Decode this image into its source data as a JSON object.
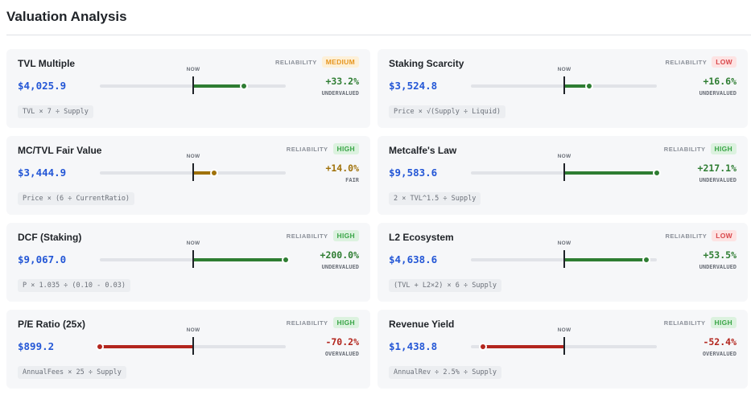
{
  "header": {
    "title": "Valuation Analysis"
  },
  "labels": {
    "reliability": "RELIABILITY",
    "now": "NOW"
  },
  "colors": {
    "value": "#2457d6",
    "undervalued": "#2e7d32",
    "overvalued": "#b3261e",
    "fair": "#a0720a",
    "badge_medium": {
      "bg": "#fdf0d8",
      "fg": "#e6951e"
    },
    "badge_high": {
      "bg": "#dcf2df",
      "fg": "#3aa547"
    },
    "badge_low": {
      "bg": "#fde3e3",
      "fg": "#d9464a"
    }
  },
  "models": [
    {
      "name": "TVL Multiple",
      "reliability": "MEDIUM",
      "value": "$4,025.9",
      "percent": "+33.2%",
      "pct": 33.2,
      "status": "UNDERVALUED",
      "formula": "TVL × 7 ÷ Supply"
    },
    {
      "name": "Staking Scarcity",
      "reliability": "LOW",
      "value": "$3,524.8",
      "percent": "+16.6%",
      "pct": 16.6,
      "status": "UNDERVALUED",
      "formula": "Price × √(Supply ÷ Liquid)"
    },
    {
      "name": "MC/TVL Fair Value",
      "reliability": "HIGH",
      "value": "$3,444.9",
      "percent": "+14.0%",
      "pct": 14.0,
      "status": "FAIR",
      "formula": "Price × (6 ÷ CurrentRatio)"
    },
    {
      "name": "Metcalfe's Law",
      "reliability": "HIGH",
      "value": "$9,583.6",
      "percent": "+217.1%",
      "pct": 217.1,
      "status": "UNDERVALUED",
      "formula": "2 × TVL^1.5 ÷ Supply"
    },
    {
      "name": "DCF (Staking)",
      "reliability": "HIGH",
      "value": "$9,067.0",
      "percent": "+200.0%",
      "pct": 200.0,
      "status": "UNDERVALUED",
      "formula": "P × 1.035 ÷ (0.10 - 0.03)"
    },
    {
      "name": "L2 Ecosystem",
      "reliability": "LOW",
      "value": "$4,638.6",
      "percent": "+53.5%",
      "pct": 53.5,
      "status": "UNDERVALUED",
      "formula": "(TVL + L2×2) × 6 ÷ Supply"
    },
    {
      "name": "P/E Ratio (25x)",
      "reliability": "HIGH",
      "value": "$899.2",
      "percent": "-70.2%",
      "pct": -70.2,
      "status": "OVERVALUED",
      "formula": "AnnualFees × 25 ÷ Supply"
    },
    {
      "name": "Revenue Yield",
      "reliability": "HIGH",
      "value": "$1,438.8",
      "percent": "-52.4%",
      "pct": -52.4,
      "status": "OVERVALUED",
      "formula": "AnnualRev ÷ 2.5% ÷ Supply"
    }
  ]
}
